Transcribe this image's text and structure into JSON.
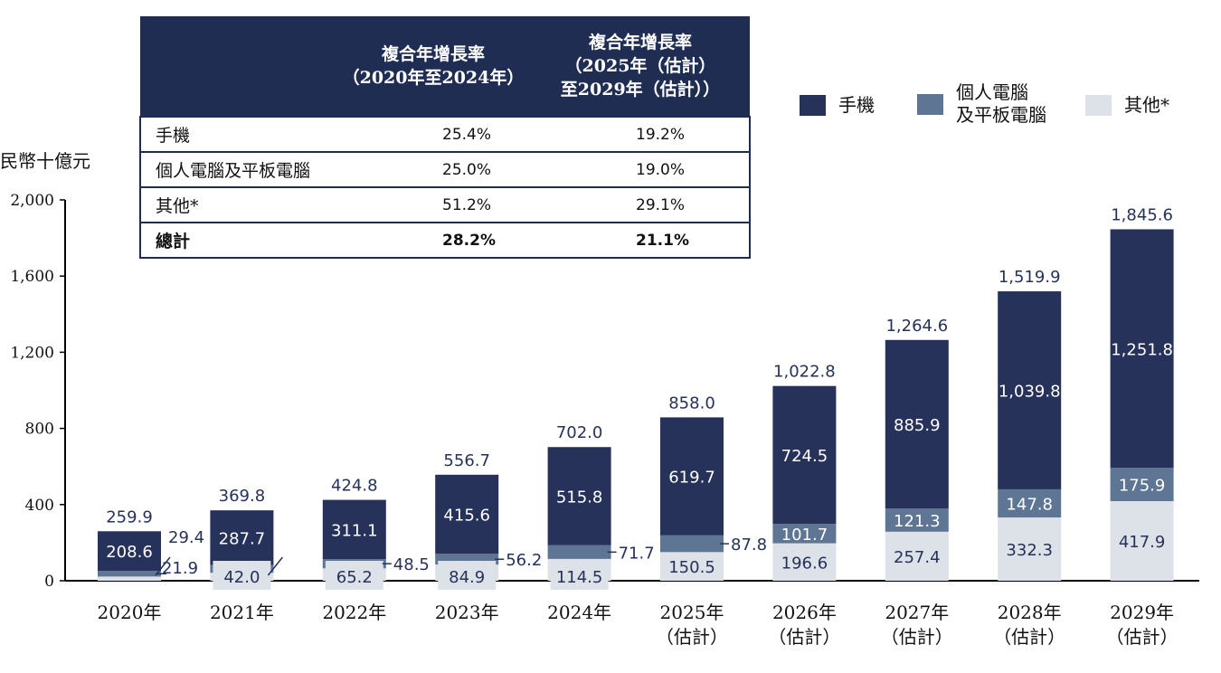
{
  "table": {
    "header": {
      "col1": [
        "複合年增長率",
        "（2020年至2024年）"
      ],
      "col2": [
        "複合年增長率",
        "（2025年（估計）",
        "至2029年（估計））"
      ]
    },
    "rows": [
      {
        "label": "手機",
        "cagr_2020_2024": "25.4%",
        "cagr_2025_2029": "19.2%"
      },
      {
        "label": "個人電腦及平板電腦",
        "cagr_2020_2024": "25.0%",
        "cagr_2025_2029": "19.0%"
      },
      {
        "label": "其他*",
        "cagr_2020_2024": "51.2%",
        "cagr_2025_2029": "29.1%"
      },
      {
        "label": "總計",
        "cagr_2020_2024": "28.2%",
        "cagr_2025_2029": "21.1%",
        "bold": true
      }
    ]
  },
  "legend": [
    {
      "name": "手機",
      "color": "#26325a"
    },
    {
      "name": "個人電腦\n及平板電腦",
      "color": "#5e7594"
    },
    {
      "name": "其他*",
      "color": "#dde1e8"
    }
  ],
  "unit_label": "民幣十億元",
  "chart_data": {
    "type": "bar",
    "stacked": true,
    "ylim": [
      0,
      2000
    ],
    "yticks": [
      "0",
      "400",
      "800",
      "1,200",
      "1,600",
      "2,000"
    ],
    "categories": [
      [
        "2020年"
      ],
      [
        "2021年"
      ],
      [
        "2022年"
      ],
      [
        "2023年"
      ],
      [
        "2024年"
      ],
      [
        "2025年",
        "（估計）"
      ],
      [
        "2026年",
        "（估計）"
      ],
      [
        "2027年",
        "（估計）"
      ],
      [
        "2028年",
        "（估計）"
      ],
      [
        "2029年",
        "（估計）"
      ]
    ],
    "series": [
      {
        "name": "其他*",
        "color": "#dde1e8",
        "values": [
          21.9,
          42.0,
          65.2,
          84.9,
          114.5,
          150.5,
          196.6,
          257.4,
          332.3,
          417.9
        ],
        "labels": [
          "21.9",
          "42.0",
          "65.2",
          "84.9",
          "114.5",
          "150.5",
          "196.6",
          "257.4",
          "332.3",
          "417.9"
        ]
      },
      {
        "name": "個人電腦及平板電腦",
        "color": "#5e7594",
        "values": [
          29.4,
          40.1,
          48.5,
          56.2,
          71.7,
          87.8,
          101.7,
          121.3,
          147.8,
          175.9
        ],
        "labels": [
          "29.4",
          "",
          "48.5",
          "56.2",
          "71.7",
          "87.8",
          "101.7",
          "121.3",
          "147.8",
          "175.9"
        ]
      },
      {
        "name": "手機",
        "color": "#26325a",
        "values": [
          208.6,
          287.7,
          311.1,
          415.6,
          515.8,
          619.7,
          724.5,
          885.9,
          1039.8,
          1251.8
        ],
        "labels": [
          "208.6",
          "287.7",
          "311.1",
          "415.6",
          "515.8",
          "619.7",
          "724.5",
          "885.9",
          "1,039.8",
          "1,251.8"
        ]
      }
    ],
    "totals": [
      "259.9",
      "369.8",
      "424.8",
      "556.7",
      "702.0",
      "858.0",
      "1,022.8",
      "1,264.6",
      "1,519.9",
      "1,845.6"
    ]
  }
}
